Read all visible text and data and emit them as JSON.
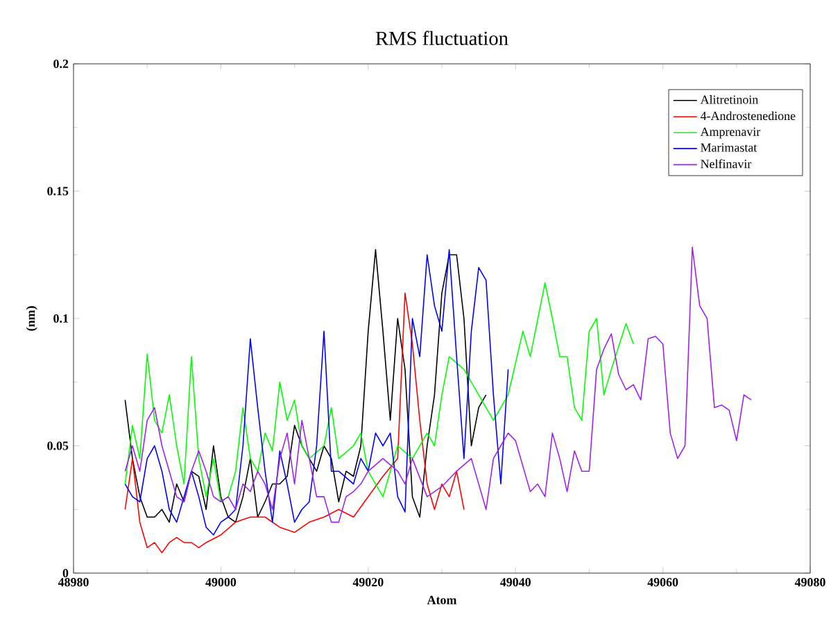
{
  "chart_data": {
    "type": "line",
    "title": "RMS fluctuation",
    "xlabel": "Atom",
    "ylabel": "(nm)",
    "xlim": [
      48980,
      49080
    ],
    "xticks": [
      48980,
      49000,
      49020,
      49040,
      49060,
      49080
    ],
    "ylim": [
      0,
      0.2
    ],
    "yticks": [
      0,
      0.05,
      0.1,
      0.15,
      0.2
    ],
    "legend": "top right",
    "grid": false,
    "marker": "none",
    "line_style": "solid",
    "series": [
      {
        "name": "Alitretinoin",
        "color": "#000000",
        "x": [
          48987,
          48988,
          48989,
          48990,
          48991,
          48992,
          48993,
          48994,
          48995,
          48996,
          48997,
          48998,
          48999,
          49000,
          49001,
          49002,
          49003,
          49004,
          49005,
          49006,
          49007,
          49008,
          49009,
          49010,
          49011,
          49012,
          49013,
          49014,
          49015,
          49016,
          49017,
          49018,
          49019,
          49020,
          49021,
          49022,
          49023,
          49024,
          49025,
          49026,
          49027,
          49028,
          49029,
          49030,
          49031,
          49032,
          49033,
          49034,
          49035,
          49036
        ],
        "values": [
          0.068,
          0.045,
          0.03,
          0.022,
          0.022,
          0.025,
          0.02,
          0.035,
          0.028,
          0.04,
          0.038,
          0.025,
          0.05,
          0.03,
          0.022,
          0.02,
          0.03,
          0.045,
          0.022,
          0.028,
          0.035,
          0.035,
          0.038,
          0.058,
          0.05,
          0.045,
          0.04,
          0.05,
          0.045,
          0.028,
          0.04,
          0.038,
          0.05,
          0.095,
          0.127,
          0.095,
          0.06,
          0.1,
          0.08,
          0.03,
          0.022,
          0.05,
          0.07,
          0.11,
          0.125,
          0.125,
          0.1,
          0.05,
          0.065,
          0.07
        ]
      },
      {
        "name": "4-Androstenedione",
        "color": "#ff0000",
        "x": [
          48987,
          48988,
          48989,
          48990,
          48991,
          48992,
          48993,
          48994,
          48995,
          48996,
          48997,
          48998,
          49000,
          49002,
          49004,
          49006,
          49008,
          49010,
          49012,
          49014,
          49016,
          49018,
          49020,
          49022,
          49024,
          49025,
          49026,
          49027,
          49028,
          49029,
          49030,
          49031,
          49032,
          49033
        ],
        "values": [
          0.025,
          0.045,
          0.02,
          0.01,
          0.012,
          0.008,
          0.012,
          0.014,
          0.012,
          0.012,
          0.01,
          0.012,
          0.015,
          0.02,
          0.022,
          0.022,
          0.018,
          0.016,
          0.02,
          0.022,
          0.025,
          0.022,
          0.03,
          0.038,
          0.045,
          0.11,
          0.09,
          0.06,
          0.035,
          0.025,
          0.035,
          0.03,
          0.04,
          0.025
        ]
      },
      {
        "name": "Amprenavir",
        "color": "#00ff00",
        "x": [
          48987,
          48988,
          48989,
          48990,
          48991,
          48992,
          48993,
          48994,
          48995,
          48996,
          48997,
          48998,
          48999,
          49000,
          49001,
          49002,
          49003,
          49004,
          49005,
          49006,
          49007,
          49008,
          49009,
          49010,
          49011,
          49012,
          49014,
          49015,
          49016,
          49018,
          49019,
          49020,
          49022,
          49024,
          49026,
          49028,
          49029,
          49030,
          49031,
          49033,
          49035,
          49037,
          49038,
          49039,
          49041,
          49042,
          49044,
          49045,
          49046,
          49047,
          49048,
          49049,
          49050,
          49051,
          49052,
          49053,
          49055,
          49056
        ],
        "values": [
          0.035,
          0.058,
          0.045,
          0.086,
          0.06,
          0.055,
          0.07,
          0.05,
          0.035,
          0.085,
          0.045,
          0.03,
          0.045,
          0.028,
          0.03,
          0.04,
          0.065,
          0.045,
          0.04,
          0.055,
          0.048,
          0.075,
          0.06,
          0.068,
          0.05,
          0.045,
          0.05,
          0.065,
          0.045,
          0.05,
          0.055,
          0.04,
          0.03,
          0.05,
          0.045,
          0.055,
          0.05,
          0.07,
          0.085,
          0.08,
          0.07,
          0.06,
          0.065,
          0.07,
          0.095,
          0.085,
          0.114,
          0.1,
          0.085,
          0.085,
          0.065,
          0.06,
          0.095,
          0.1,
          0.07,
          0.08,
          0.098,
          0.09
        ]
      },
      {
        "name": "Marimastat",
        "color": "#0000ff",
        "x": [
          48987,
          48988,
          48989,
          48990,
          48991,
          48992,
          48993,
          48994,
          48995,
          48996,
          48997,
          48998,
          48999,
          49000,
          49001,
          49002,
          49003,
          49004,
          49005,
          49006,
          49007,
          49008,
          49009,
          49010,
          49011,
          49012,
          49013,
          49014,
          49015,
          49016,
          49018,
          49019,
          49020,
          49021,
          49022,
          49023,
          49024,
          49025,
          49026,
          49027,
          49028,
          49029,
          49030,
          49031,
          49032,
          49033,
          49034,
          49035,
          49036,
          49037,
          49038,
          49039
        ],
        "values": [
          0.035,
          0.03,
          0.028,
          0.045,
          0.05,
          0.04,
          0.025,
          0.02,
          0.03,
          0.04,
          0.03,
          0.018,
          0.015,
          0.02,
          0.022,
          0.025,
          0.05,
          0.092,
          0.065,
          0.04,
          0.02,
          0.048,
          0.035,
          0.02,
          0.025,
          0.028,
          0.05,
          0.095,
          0.04,
          0.04,
          0.035,
          0.045,
          0.04,
          0.055,
          0.05,
          0.055,
          0.03,
          0.024,
          0.1,
          0.085,
          0.125,
          0.105,
          0.095,
          0.127,
          0.085,
          0.045,
          0.095,
          0.12,
          0.115,
          0.07,
          0.035,
          0.08
        ]
      },
      {
        "name": "Nelfinavir",
        "color": "#a020f0",
        "x": [
          48987,
          48988,
          48989,
          48990,
          48991,
          48992,
          48993,
          48994,
          48995,
          48996,
          48997,
          48998,
          48999,
          49000,
          49001,
          49002,
          49003,
          49004,
          49005,
          49006,
          49007,
          49008,
          49009,
          49010,
          49011,
          49012,
          49013,
          49014,
          49015,
          49016,
          49017,
          49018,
          49019,
          49020,
          49022,
          49024,
          49025,
          49026,
          49028,
          49030,
          49032,
          49034,
          49036,
          49037,
          49038,
          49039,
          49040,
          49042,
          49043,
          49044,
          49045,
          49046,
          49047,
          49048,
          49049,
          49050,
          49051,
          49052,
          49053,
          49054,
          49055,
          49056,
          49057,
          49058,
          49059,
          49060,
          49061,
          49062,
          49063,
          49064,
          49065,
          49066,
          49067,
          49068,
          49069,
          49070,
          49071,
          49072
        ],
        "values": [
          0.04,
          0.05,
          0.04,
          0.06,
          0.065,
          0.05,
          0.04,
          0.03,
          0.028,
          0.04,
          0.048,
          0.04,
          0.03,
          0.028,
          0.03,
          0.025,
          0.035,
          0.032,
          0.04,
          0.035,
          0.025,
          0.045,
          0.055,
          0.035,
          0.06,
          0.045,
          0.03,
          0.03,
          0.02,
          0.02,
          0.03,
          0.032,
          0.035,
          0.04,
          0.045,
          0.04,
          0.035,
          0.045,
          0.03,
          0.034,
          0.04,
          0.045,
          0.025,
          0.045,
          0.05,
          0.055,
          0.052,
          0.032,
          0.035,
          0.03,
          0.055,
          0.045,
          0.032,
          0.048,
          0.04,
          0.04,
          0.08,
          0.088,
          0.094,
          0.078,
          0.072,
          0.074,
          0.068,
          0.092,
          0.093,
          0.09,
          0.055,
          0.045,
          0.05,
          0.128,
          0.105,
          0.1,
          0.065,
          0.066,
          0.064,
          0.052,
          0.07,
          0.068
        ]
      }
    ]
  }
}
